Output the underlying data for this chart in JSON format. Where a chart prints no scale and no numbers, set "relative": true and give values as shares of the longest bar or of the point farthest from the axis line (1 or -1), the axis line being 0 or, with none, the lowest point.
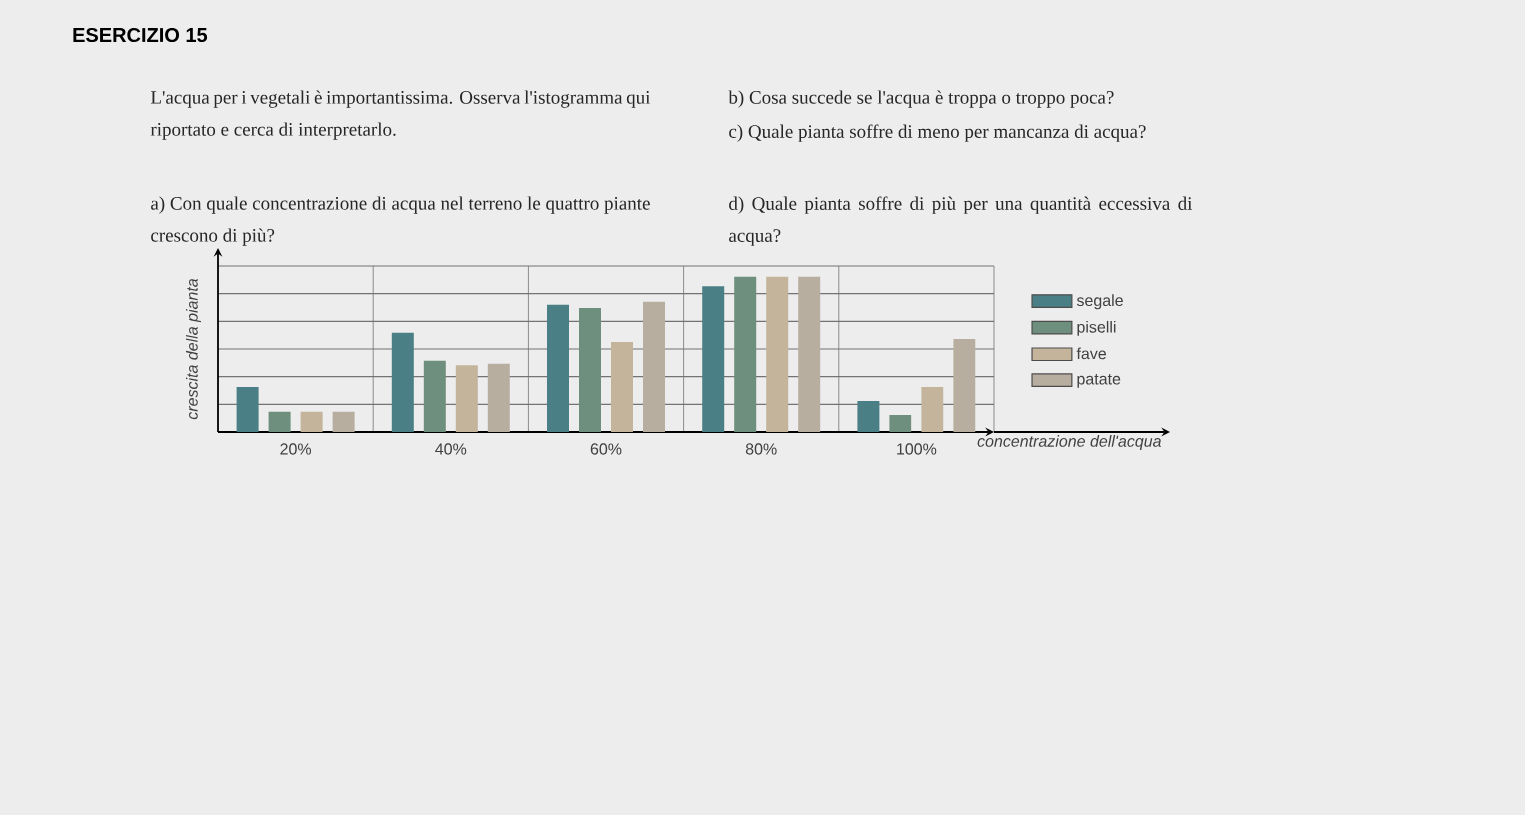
{
  "chart_data": {
    "type": "bar",
    "title": "ESERCIZIO 15",
    "xlabel": "concentrazione dell'acqua",
    "ylabel": "crescita della pianta",
    "categories": [
      "20%",
      "40%",
      "60%",
      "80%",
      "100%"
    ],
    "relative": true,
    "grid": true,
    "legend": "right",
    "series": [
      {
        "name": "segale",
        "color": "#4a7f86",
        "values": [
          0.29,
          0.64,
          0.82,
          0.94,
          0.2
        ]
      },
      {
        "name": "piselli",
        "color": "#6e8f7e",
        "values": [
          0.13,
          0.46,
          0.8,
          1,
          0.11
        ]
      },
      {
        "name": "fave",
        "color": "#c4b49c",
        "values": [
          0.13,
          0.43,
          0.58,
          1,
          0.29
        ]
      },
      {
        "name": "patate",
        "color": "#b8aea0",
        "values": [
          0.13,
          0.44,
          0.84,
          1,
          0.6
        ]
      }
    ],
    "annotations": [
      "L'acqua per i vegetali è importantissima. Osserva l'istogramma qui riportato e cerca di interpretarlo.",
      "a) Con quale concentrazione di acqua nel terreno le quattro piante crescono di più?",
      "b) Cosa succede se l'acqua è troppa o troppo poca?",
      "c) Quale pianta soffre di meno per mancanza di acqua?",
      "d) Quale pianta soffre di più per una quantità eccessiva di acqua?"
    ]
  }
}
